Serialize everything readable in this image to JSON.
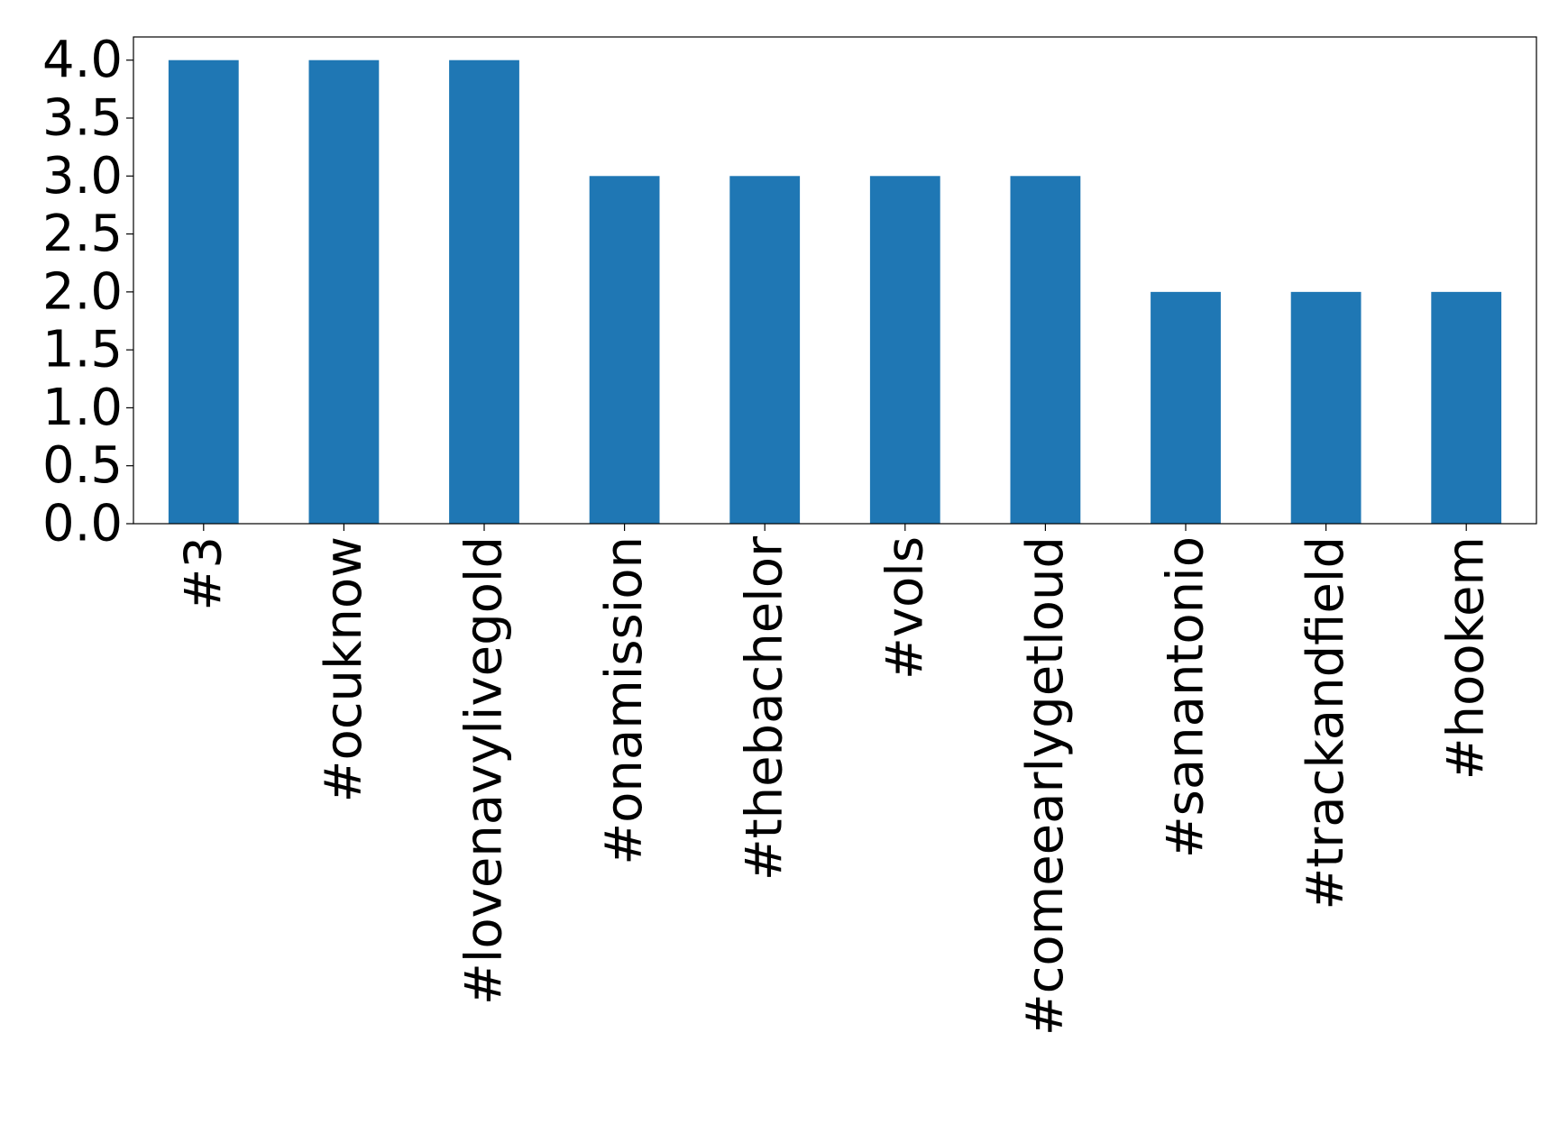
{
  "chart_data": {
    "type": "bar",
    "title": "",
    "xlabel": "",
    "ylabel": "",
    "categories": [
      "#3",
      "#ocuknow",
      "#lovenavylivegold",
      "#onamission",
      "#thebachelor",
      "#vols",
      "#comeearlygetloud",
      "#sanantonio",
      "#trackandfield",
      "#hookem"
    ],
    "values": [
      4,
      4,
      4,
      3,
      3,
      3,
      3,
      2,
      2,
      2
    ],
    "ylim": [
      0,
      4.2
    ],
    "yticks": [
      0.0,
      0.5,
      1.0,
      1.5,
      2.0,
      2.5,
      3.0,
      3.5,
      4.0
    ],
    "ytick_labels": [
      "0.0",
      "0.5",
      "1.0",
      "1.5",
      "2.0",
      "2.5",
      "3.0",
      "3.5",
      "4.0"
    ],
    "grid": false,
    "legend": false,
    "bar_color": "#1f77b4"
  }
}
